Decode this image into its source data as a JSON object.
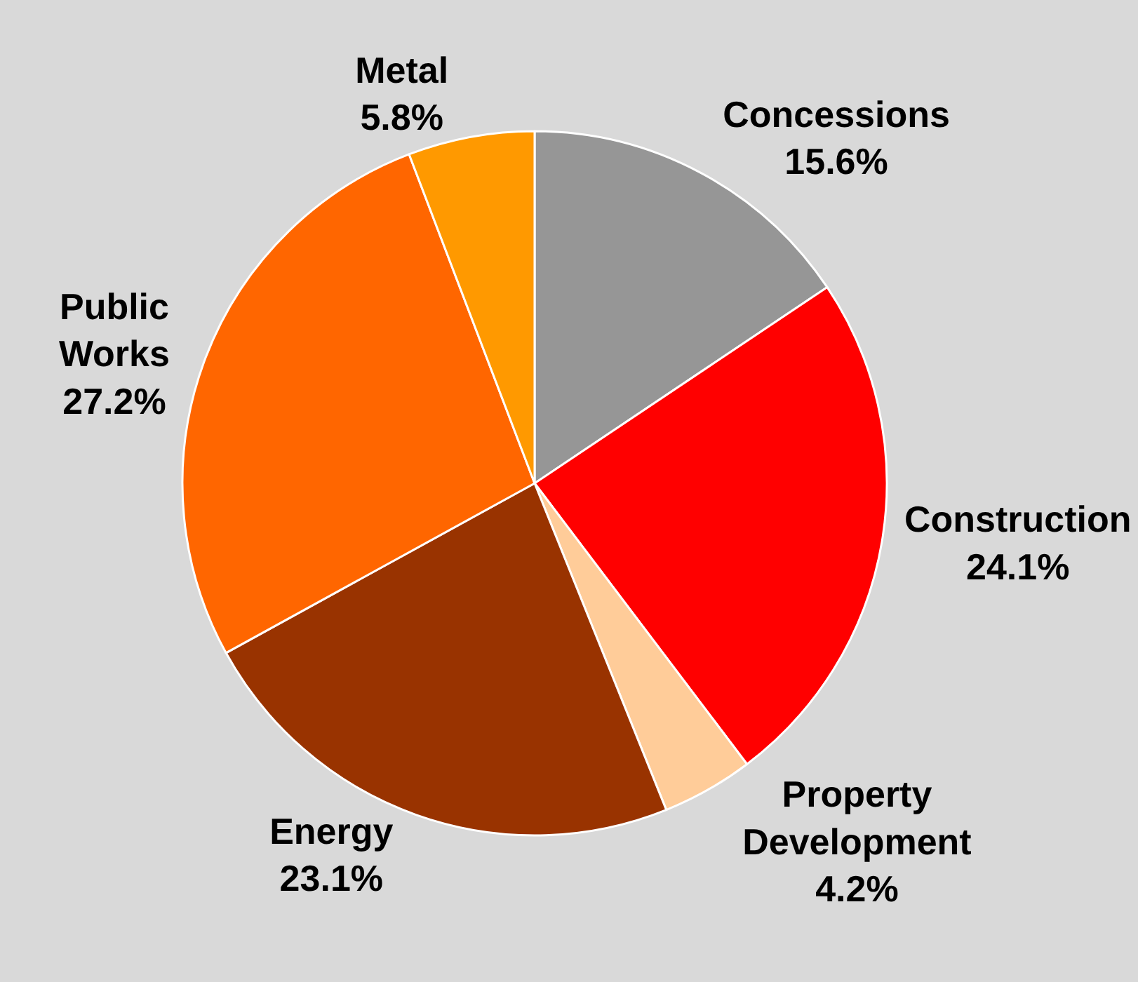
{
  "chart_data": {
    "type": "pie",
    "categories": [
      "Concessions",
      "Construction",
      "Property Development",
      "Energy",
      "Public Works",
      "Metal"
    ],
    "values": [
      15.6,
      24.1,
      4.2,
      23.1,
      27.2,
      5.8
    ],
    "value_labels": [
      "15.6%",
      "24.1%",
      "4.2%",
      "23.1%",
      "27.2%",
      "5.8%"
    ],
    "colors": [
      "#969696",
      "#ff0000",
      "#ffcc99",
      "#993300",
      "#ff6600",
      "#ff9900"
    ],
    "legend": false
  }
}
